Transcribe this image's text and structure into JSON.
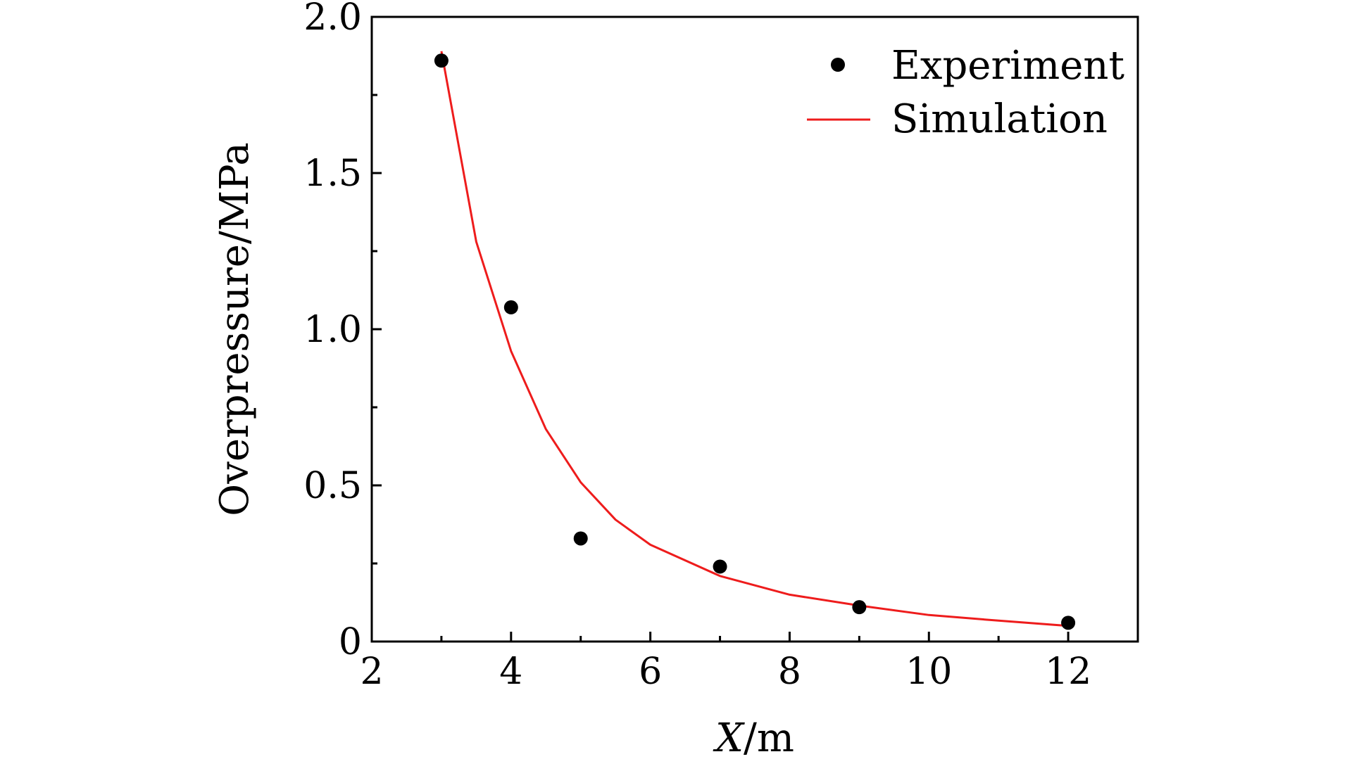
{
  "chart_data": {
    "type": "scatter",
    "title": "",
    "xlabel": {
      "var": "X",
      "unit": "/m"
    },
    "ylabel": "Overpressure/MPa",
    "xlim": [
      2,
      13
    ],
    "ylim": [
      0,
      2.0
    ],
    "grid": false,
    "legend_position": "top-right",
    "x_ticks": [
      2,
      4,
      6,
      8,
      10,
      12
    ],
    "x_tick_labels": [
      "2",
      "4",
      "6",
      "8",
      "10",
      "12"
    ],
    "y_ticks": [
      0,
      0.5,
      1.0,
      1.5,
      2.0
    ],
    "y_tick_labels": [
      "0",
      "0.5",
      "1.0",
      "1.5",
      "2.0"
    ],
    "series": [
      {
        "name": "Experiment",
        "kind": "scatter",
        "color": "#000000",
        "x": [
          3,
          4,
          5,
          7,
          9,
          12
        ],
        "y": [
          1.86,
          1.07,
          0.33,
          0.24,
          0.11,
          0.06
        ]
      },
      {
        "name": "Simulation",
        "kind": "line",
        "color": "#ee1c1c",
        "x": [
          3.0,
          3.5,
          4.0,
          4.5,
          5.0,
          5.5,
          6.0,
          7.0,
          8.0,
          9.0,
          10.0,
          11.0,
          12.0
        ],
        "y": [
          1.89,
          1.28,
          0.93,
          0.68,
          0.51,
          0.39,
          0.31,
          0.21,
          0.15,
          0.115,
          0.085,
          0.067,
          0.05
        ]
      }
    ]
  }
}
